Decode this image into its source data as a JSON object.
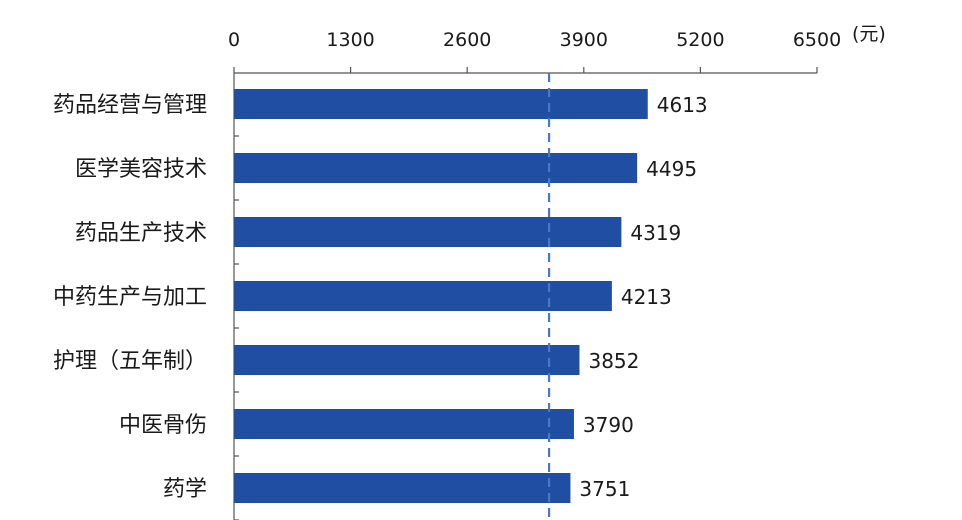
{
  "chart_data": {
    "type": "bar",
    "orientation": "horizontal",
    "unit": "(元)",
    "xlim": [
      0,
      6500
    ],
    "xticks": [
      0,
      1300,
      2600,
      3900,
      5200,
      6500
    ],
    "reference_line": 3513,
    "bar_color": "#1f4ea3",
    "reference_line_color": "#4a78c2",
    "categories": [
      "药品经营与管理",
      "医学美容技术",
      "药品生产技术",
      "中药生产与加工",
      "护理（五年制）",
      "中医骨伤",
      "药学"
    ],
    "values": [
      4613,
      4495,
      4319,
      4213,
      3852,
      3790,
      3751
    ],
    "grid": false
  }
}
